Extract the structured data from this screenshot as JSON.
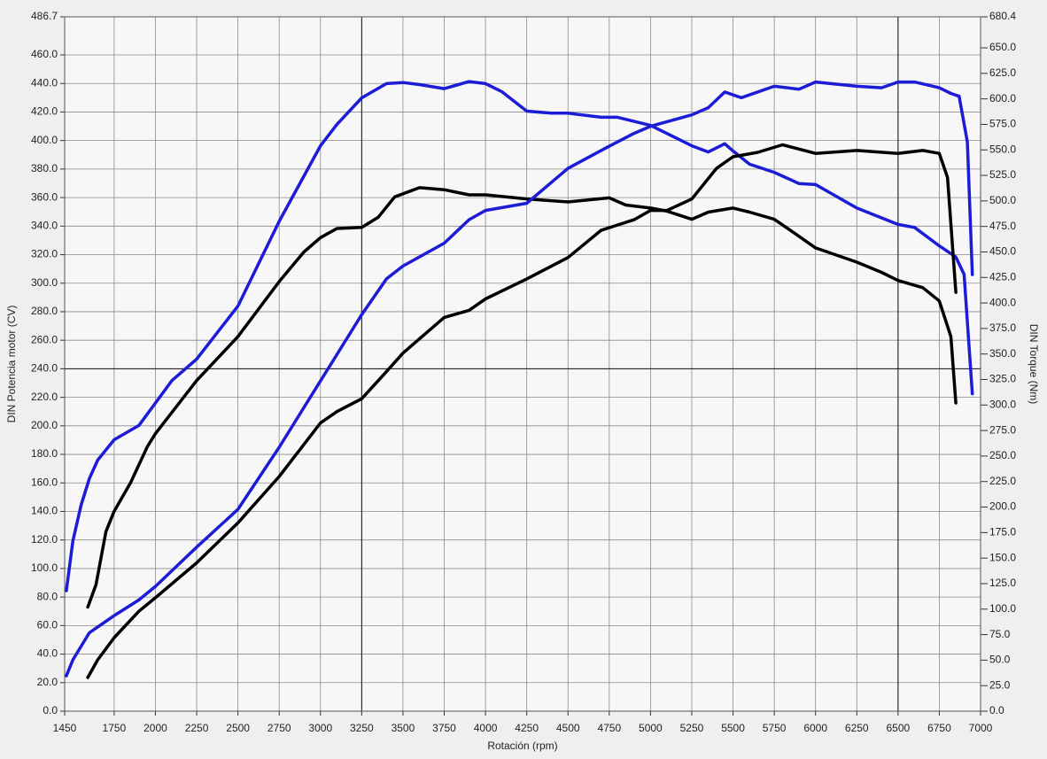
{
  "chart_data": {
    "type": "line",
    "x_label": "Rotación (rpm)",
    "y_label": "DIN Potencia motor (CV)",
    "y2_label": "DIN Torque (Nm)",
    "xlim": [
      1450,
      7000
    ],
    "xticks": [
      1450,
      1750,
      2000,
      2250,
      2500,
      2750,
      3000,
      3250,
      3500,
      3750,
      4000,
      4250,
      4500,
      4750,
      5000,
      5250,
      5500,
      5750,
      6000,
      6250,
      6500,
      6750,
      7000
    ],
    "ylim": [
      0,
      486.7
    ],
    "yticks": [
      {
        "value": 0,
        "label": "0.0"
      },
      {
        "value": 20,
        "label": "20.0"
      },
      {
        "value": 40,
        "label": "40.0"
      },
      {
        "value": 60,
        "label": "60.0"
      },
      {
        "value": 80,
        "label": "80.0"
      },
      {
        "value": 100,
        "label": "100.0"
      },
      {
        "value": 120,
        "label": "120.0"
      },
      {
        "value": 140,
        "label": "140.0"
      },
      {
        "value": 160,
        "label": "160.0"
      },
      {
        "value": 180,
        "label": "180.0"
      },
      {
        "value": 200,
        "label": "200.0"
      },
      {
        "value": 220,
        "label": "220.0"
      },
      {
        "value": 240,
        "label": "240.0"
      },
      {
        "value": 260,
        "label": "260.0"
      },
      {
        "value": 280,
        "label": "280.0"
      },
      {
        "value": 300,
        "label": "300.0"
      },
      {
        "value": 320,
        "label": "320.0"
      },
      {
        "value": 340,
        "label": "340.0"
      },
      {
        "value": 360,
        "label": "360.0"
      },
      {
        "value": 380,
        "label": "380.0"
      },
      {
        "value": 400,
        "label": "400.0"
      },
      {
        "value": 420,
        "label": "420.0"
      },
      {
        "value": 440,
        "label": "440.0"
      },
      {
        "value": 460,
        "label": "460.0"
      },
      486.7
    ],
    "y2lim": [
      0,
      680.4
    ],
    "y2ticks": [
      {
        "value": 0,
        "label": "0.0"
      },
      {
        "value": 25,
        "label": "25.0"
      },
      {
        "value": 50,
        "label": "50.0"
      },
      {
        "value": 75,
        "label": "75.0"
      },
      {
        "value": 100,
        "label": "100.0"
      },
      {
        "value": 125,
        "label": "125.0"
      },
      {
        "value": 150,
        "label": "150.0"
      },
      {
        "value": 175,
        "label": "175.0"
      },
      {
        "value": 200,
        "label": "200.0"
      },
      {
        "value": 225,
        "label": "225.0"
      },
      {
        "value": 250,
        "label": "250.0"
      },
      {
        "value": 275,
        "label": "275.0"
      },
      {
        "value": 300,
        "label": "300.0"
      },
      {
        "value": 325,
        "label": "325.0"
      },
      {
        "value": 350,
        "label": "350.0"
      },
      {
        "value": 375,
        "label": "375.0"
      },
      {
        "value": 400,
        "label": "400.0"
      },
      {
        "value": 425,
        "label": "425.0"
      },
      {
        "value": 450,
        "label": "450.0"
      },
      {
        "value": 475,
        "label": "475.0"
      },
      {
        "value": 500,
        "label": "500.0"
      },
      {
        "value": 525,
        "label": "525.0"
      },
      {
        "value": 550,
        "label": "550.0"
      },
      {
        "value": 575,
        "label": "575.0"
      },
      {
        "value": 600,
        "label": "600.0"
      },
      {
        "value": 625,
        "label": "625.0"
      },
      {
        "value": 650,
        "label": "650.0"
      },
      680.4
    ],
    "grid": true,
    "cursor_x": [
      3250,
      6500
    ],
    "cursor_y": 240,
    "series": [
      {
        "color": "#1c1cd6",
        "axis": "y2",
        "x": [
          1460,
          1500,
          1550,
          1600,
          1650,
          1750,
          1900,
          2000,
          2100,
          2250,
          2500,
          2750,
          3000,
          3100,
          3250,
          3400,
          3500,
          3600,
          3750,
          3900,
          4000,
          4100,
          4250,
          4400,
          4500,
          4700,
          4800,
          5000,
          5250,
          5350,
          5450,
          5500,
          5600,
          5750,
          5900,
          6000,
          6250,
          6500,
          6600,
          6750,
          6850,
          6900,
          6950
        ],
        "values": [
          118,
          167,
          202,
          228,
          246,
          266,
          280,
          302,
          324,
          345,
          397,
          480,
          554,
          575,
          601,
          615,
          616,
          614,
          610,
          617,
          615,
          607,
          588,
          586,
          586,
          582,
          582,
          574,
          554,
          548,
          556,
          549,
          536,
          528,
          517,
          516,
          493,
          477,
          474,
          456,
          445,
          428,
          311
        ]
      },
      {
        "color": "#000000",
        "axis": "y2",
        "x": [
          1590,
          1640,
          1700,
          1750,
          1850,
          1950,
          2000,
          2250,
          2500,
          2750,
          2900,
          3000,
          3100,
          3250,
          3350,
          3450,
          3600,
          3750,
          3900,
          4000,
          4250,
          4500,
          4750,
          4850,
          5000,
          5100,
          5250,
          5350,
          5500,
          5600,
          5750,
          5850,
          6000,
          6250,
          6400,
          6500,
          6650,
          6750,
          6820,
          6850
        ],
        "values": [
          102,
          124,
          176,
          196,
          224,
          259,
          272,
          324,
          367,
          421,
          450,
          464,
          473,
          474,
          484,
          504,
          513,
          511,
          506,
          506,
          502,
          499,
          503,
          496,
          493,
          490,
          482,
          489,
          493,
          489,
          482,
          471,
          454,
          440,
          430,
          422,
          415,
          402,
          367,
          302
        ]
      },
      {
        "color": "#1c1cd6",
        "x": [
          1460,
          1500,
          1600,
          1750,
          1900,
          2000,
          2250,
          2500,
          2750,
          3000,
          3250,
          3400,
          3500,
          3750,
          3900,
          4000,
          4250,
          4500,
          4750,
          4900,
          5000,
          5250,
          5350,
          5450,
          5550,
          5750,
          5900,
          6000,
          6250,
          6400,
          6500,
          6600,
          6750,
          6820,
          6870,
          6920,
          6950
        ],
        "values": [
          24.8,
          36,
          55,
          67,
          78,
          87.5,
          115,
          141.5,
          185,
          231.5,
          278,
          303,
          312,
          328,
          344.5,
          351,
          356,
          380.5,
          396,
          405,
          410,
          418,
          423,
          434,
          430,
          438,
          436,
          441,
          438,
          437,
          441,
          441,
          437,
          433,
          431,
          399,
          306
        ]
      },
      {
        "color": "#000000",
        "x": [
          1590,
          1650,
          1750,
          1900,
          2000,
          2250,
          2500,
          2750,
          3000,
          3100,
          3250,
          3400,
          3500,
          3750,
          3900,
          4000,
          4250,
          4500,
          4700,
          4900,
          5000,
          5100,
          5250,
          5400,
          5500,
          5650,
          5800,
          6000,
          6250,
          6500,
          6650,
          6750,
          6800,
          6850
        ],
        "values": [
          23.6,
          36,
          51.5,
          70,
          79.5,
          104,
          132,
          164.5,
          202,
          210,
          219,
          238,
          251,
          276,
          281,
          289,
          303,
          318,
          337,
          344.5,
          351,
          351,
          359,
          380.5,
          388.6,
          391.7,
          397,
          391,
          393,
          391,
          393,
          391,
          374,
          293.6
        ]
      }
    ]
  }
}
